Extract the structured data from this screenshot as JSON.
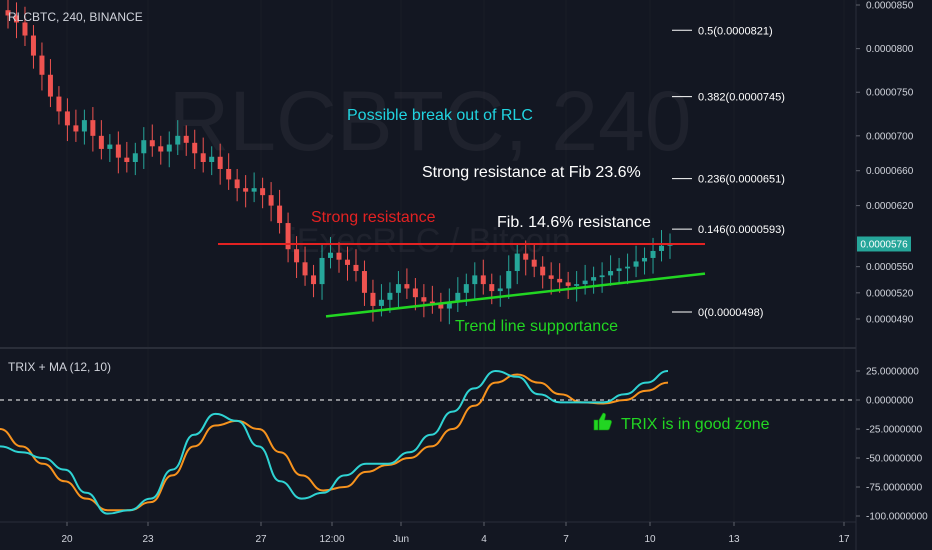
{
  "header": {
    "symbol": "RLCBTC, 240, BINANCE",
    "watermark": "RLCBTC, 240",
    "watermark_sub": "iExecRLC / Bitcoin"
  },
  "indicator": {
    "label": "TRIX + MA (12, 10)"
  },
  "colors": {
    "background": "#131722",
    "up": "#26a69a",
    "down": "#ef5350",
    "trix": "#2fd3d3",
    "ma": "#f7931e",
    "resistance": "#e32222",
    "trendline": "#22d622",
    "annotation_cyan": "#21d4e0",
    "annotation_white": "#ffffff",
    "annotation_red": "#e32222",
    "annotation_green": "#22d622",
    "price_tag": "#26a69a"
  },
  "annotations": {
    "breakout": "Possible break out of RLC",
    "strong_resistance_fib": "Strong resistance at Fib 23.6%",
    "fib_146": "Fib. 14.6% resistance",
    "strong_resistance": "Strong resistance",
    "trend_support": "Trend line supportance",
    "trix_zone": "TRIX is in good zone",
    "thumbs_icon": "thumbs-up-icon"
  },
  "current_price": "0.0000576",
  "chart_data": [
    {
      "type": "candlestick",
      "title": "RLCBTC, 240, BINANCE",
      "price_ticks": [
        "0.0000850",
        "0.0000800",
        "0.0000750",
        "0.0000700",
        "0.0000660",
        "0.0000620",
        "0.0000550",
        "0.0000520",
        "0.0000490"
      ],
      "price_tick_values": [
        8.5e-05,
        8e-05,
        7.5e-05,
        7e-05,
        6.6e-05,
        6.2e-05,
        5.5e-05,
        5.2e-05,
        4.9e-05
      ],
      "x_ticks": [
        "20",
        "23",
        "27",
        "12:00",
        "Jun",
        "4",
        "7",
        "10",
        "13",
        "17"
      ],
      "fib_levels": [
        {
          "label": "0.5(0.0000821)",
          "value": 8.21e-05
        },
        {
          "label": "0.382(0.0000745)",
          "value": 7.45e-05
        },
        {
          "label": "0.236(0.0000651)",
          "value": 6.51e-05
        },
        {
          "label": "0.146(0.0000593)",
          "value": 5.93e-05
        },
        {
          "label": "0(0.0000498)",
          "value": 4.98e-05
        }
      ],
      "resistance_value": 5.76e-05,
      "trendline": {
        "start": 4.93e-05,
        "end": 5.42e-05
      },
      "close_approx": [
        8.38e-05,
        8.3e-05,
        8.15e-05,
        7.92e-05,
        7.7e-05,
        7.45e-05,
        7.28e-05,
        7.12e-05,
        7.05e-05,
        7.18e-05,
        7e-05,
        6.85e-05,
        6.9e-05,
        6.75e-05,
        6.7e-05,
        6.8e-05,
        6.95e-05,
        6.88e-05,
        6.82e-05,
        6.9e-05,
        7e-05,
        6.92e-05,
        6.8e-05,
        6.7e-05,
        6.76e-05,
        6.62e-05,
        6.5e-05,
        6.4e-05,
        6.36e-05,
        6.4e-05,
        6.32e-05,
        6.2e-05,
        6e-05,
        5.7e-05,
        5.55e-05,
        5.4e-05,
        5.3e-05,
        5.6e-05,
        5.66e-05,
        5.58e-05,
        5.52e-05,
        5.45e-05,
        5.2e-05,
        5.05e-05,
        5.12e-05,
        5.2e-05,
        5.3e-05,
        5.25e-05,
        5.15e-05,
        5.1e-05,
        5.08e-05,
        5.02e-05,
        5.1e-05,
        5.2e-05,
        5.3e-05,
        5.4e-05,
        5.3e-05,
        5.22e-05,
        5.25e-05,
        5.45e-05,
        5.65e-05,
        5.58e-05,
        5.5e-05,
        5.4e-05,
        5.36e-05,
        5.32e-05,
        5.28e-05,
        5.3e-05,
        5.34e-05,
        5.38e-05,
        5.4e-05,
        5.45e-05,
        5.48e-05,
        5.5e-05,
        5.56e-05,
        5.6e-05,
        5.68e-05,
        5.74e-05,
        5.76e-05
      ]
    },
    {
      "type": "line",
      "title": "TRIX + MA (12, 10)",
      "yticks": [
        "25.0000000",
        "0.0000000",
        "-25.0000000",
        "-50.0000000",
        "-75.0000000",
        "-100.0000000"
      ],
      "ytick_values": [
        25,
        0,
        -25,
        -50,
        -75,
        -100
      ],
      "series": [
        {
          "name": "TRIX",
          "values": [
            -40,
            -45,
            -50,
            -60,
            -80,
            -98,
            -95,
            -85,
            -60,
            -30,
            -12,
            -18,
            -40,
            -70,
            -85,
            -80,
            -65,
            -55,
            -55,
            -45,
            -30,
            -10,
            10,
            25,
            20,
            5,
            -2,
            -2,
            -2,
            5,
            15,
            25
          ]
        },
        {
          "name": "MA",
          "values": [
            -25,
            -40,
            -55,
            -70,
            -85,
            -95,
            -95,
            -88,
            -65,
            -40,
            -22,
            -18,
            -25,
            -45,
            -65,
            -78,
            -75,
            -62,
            -56,
            -50,
            -40,
            -25,
            -5,
            15,
            22,
            15,
            5,
            -2,
            -3,
            0,
            8,
            15
          ]
        }
      ]
    }
  ]
}
